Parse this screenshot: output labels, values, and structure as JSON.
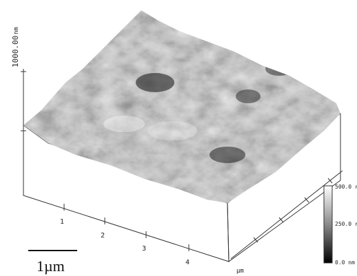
{
  "z_axis": {
    "unit": "nm",
    "max_label": "1000.00"
  },
  "x_axis": {
    "ticks": [
      "1",
      "2",
      "3",
      "4"
    ],
    "unit": "µm"
  },
  "color_scale": {
    "top": "500.0 r",
    "mid": "250.0 r",
    "bottom": "0.0 nm"
  },
  "scale_bar": {
    "label": "1µm"
  }
}
